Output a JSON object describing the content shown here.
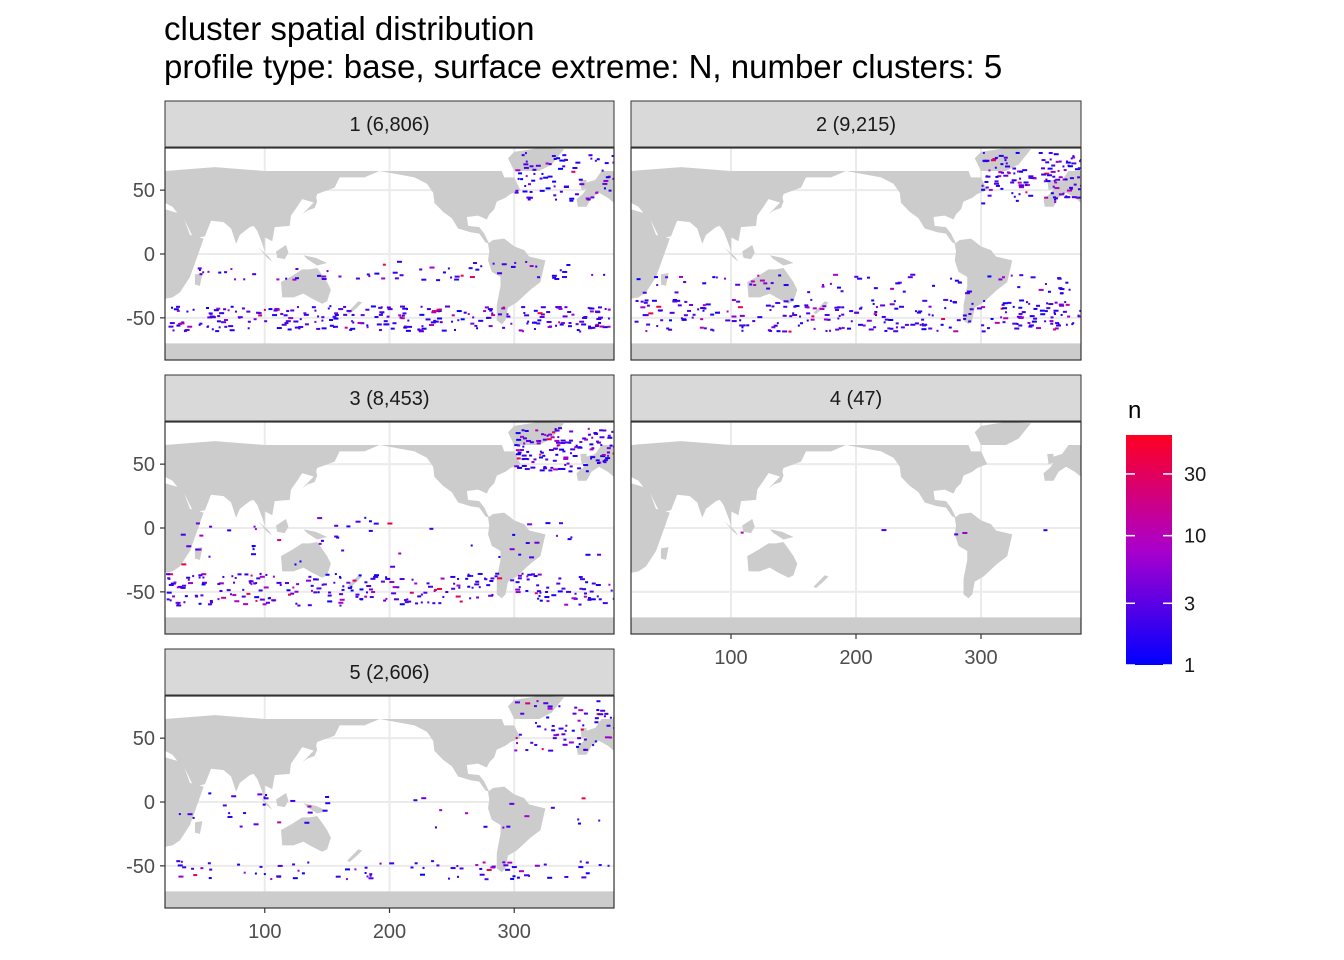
{
  "chart_data": {
    "type": "heatmap",
    "title": "cluster spatial distribution",
    "subtitle": "profile type: base, surface extreme: N, number clusters: 5",
    "xlabel": "",
    "ylabel": "",
    "facets": [
      {
        "label": "1 (6,806)",
        "count": 6806
      },
      {
        "label": "2 (9,215)",
        "count": 9215
      },
      {
        "label": "3 (8,453)",
        "count": 8453
      },
      {
        "label": "4 (47)",
        "count": 47
      },
      {
        "label": "5 (2,606)",
        "count": 2606
      }
    ],
    "xlim": [
      20,
      380
    ],
    "ylim": [
      -83,
      83
    ],
    "x_ticks": [
      100,
      200,
      300
    ],
    "x_tick_labels": [
      "100",
      "200",
      "300"
    ],
    "y_ticks": [
      50,
      0,
      -50
    ],
    "y_tick_labels": [
      "50",
      "0",
      "-50"
    ],
    "legend": {
      "title": "n",
      "scale": "log",
      "range": [
        1,
        60
      ],
      "ticks": [
        1,
        3,
        10,
        30
      ],
      "tick_labels": [
        "1",
        "3",
        "10",
        "30"
      ],
      "color_low": "#0000ff",
      "color_mid": "#aa00cc",
      "color_high": "#ff0022",
      "placement": "right"
    },
    "colors": {
      "land": "#cccccc",
      "strip": "#d9d9d9",
      "grid": "#ebebeb",
      "panel_border": "#333333"
    }
  }
}
